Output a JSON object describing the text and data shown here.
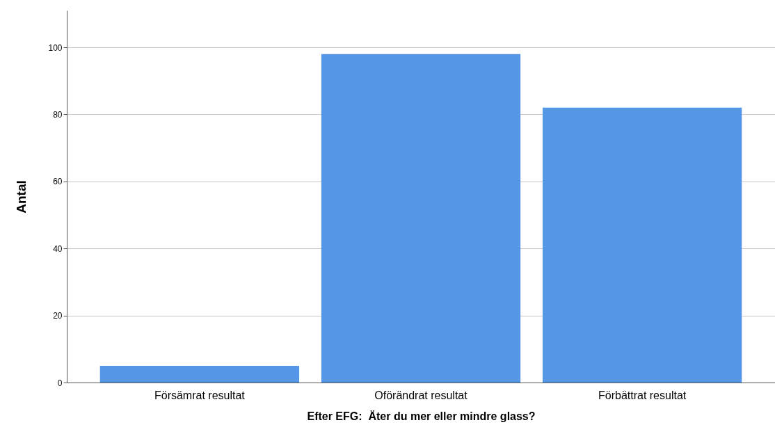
{
  "chart_data": {
    "type": "bar",
    "xlabel": "Efter EFG:  Äter du mer eller mindre glass?",
    "ylabel": "Antal",
    "categories": [
      "Försämrat resultat",
      "Oförändrat resultat",
      "Förbättrat resultat"
    ],
    "values": [
      5,
      98,
      82
    ],
    "color": "#5596e6",
    "ylim": [
      0,
      111
    ],
    "yticks": [
      0,
      20,
      40,
      60,
      80,
      100
    ],
    "grid": "y"
  }
}
